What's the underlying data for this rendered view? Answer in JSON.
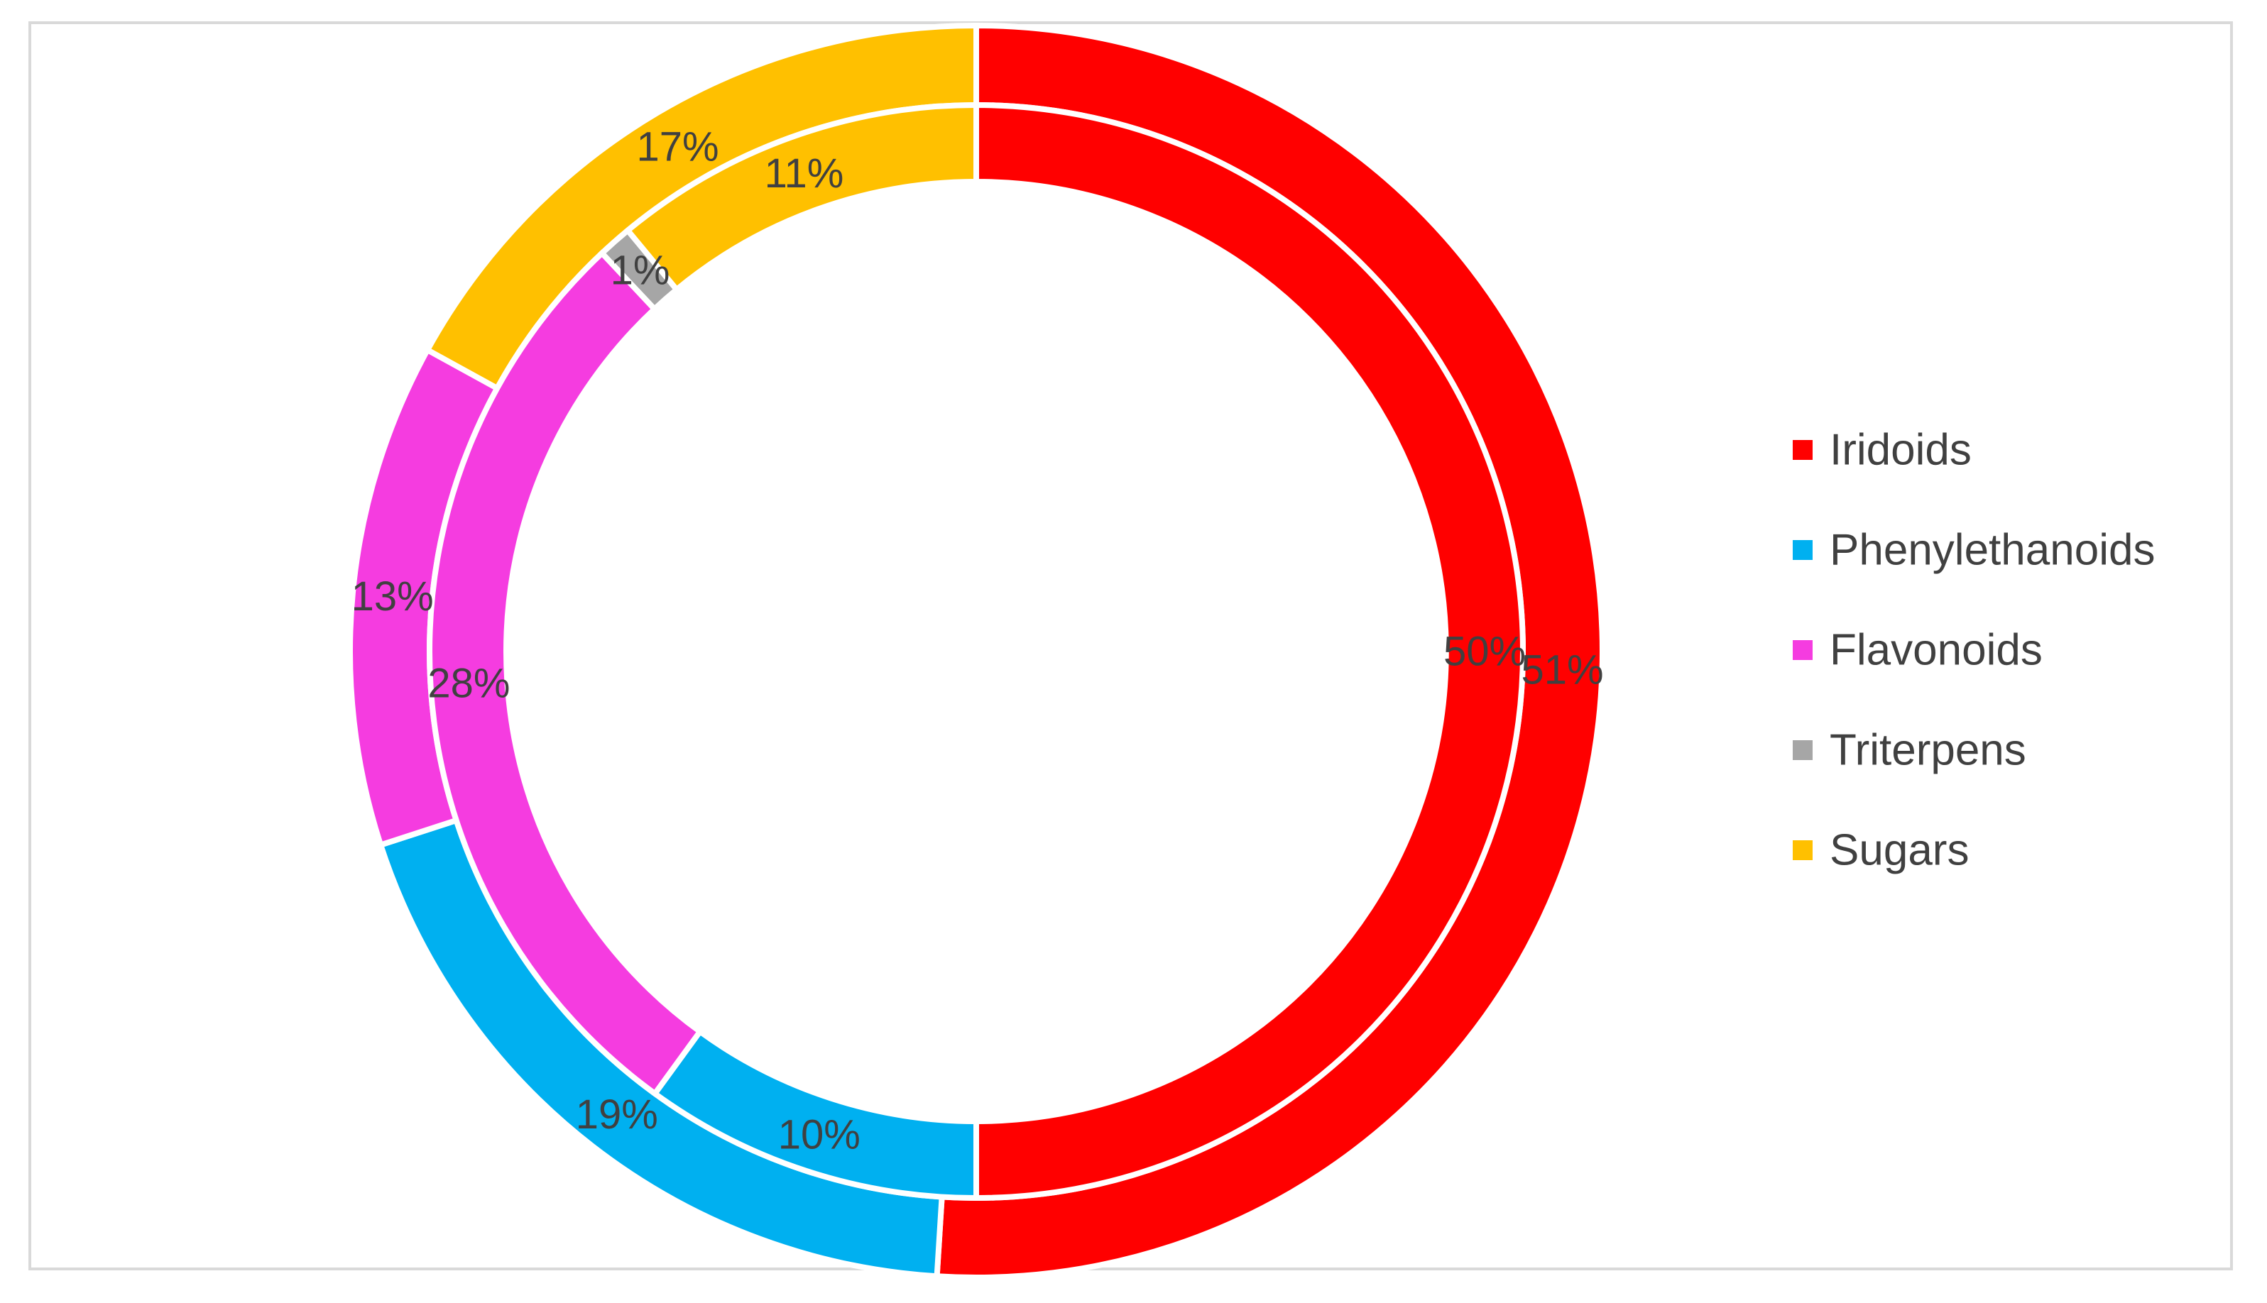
{
  "chart_data": {
    "type": "doughnut",
    "categories": [
      "Iridoids",
      "Phenylethanoids",
      "Flavonoids",
      "Triterpens",
      "Sugars"
    ],
    "colors": [
      "#ff0000",
      "#00b0f0",
      "#f53ce0",
      "#a6a6a6",
      "#ffc000"
    ],
    "series": [
      {
        "ring": "outer",
        "values": [
          51,
          19,
          13,
          0,
          17
        ],
        "labels": [
          "51%",
          "19%",
          "13%",
          "",
          "17%"
        ]
      },
      {
        "ring": "inner",
        "values": [
          50,
          10,
          28,
          1,
          11
        ],
        "labels": [
          "50%",
          "10%",
          "28%",
          "1%",
          "11%"
        ]
      }
    ],
    "legend": {
      "position": "right",
      "items": [
        "Iridoids",
        "Phenylethanoids",
        "Flavonoids",
        "Triterpens",
        "Sugars"
      ]
    }
  }
}
